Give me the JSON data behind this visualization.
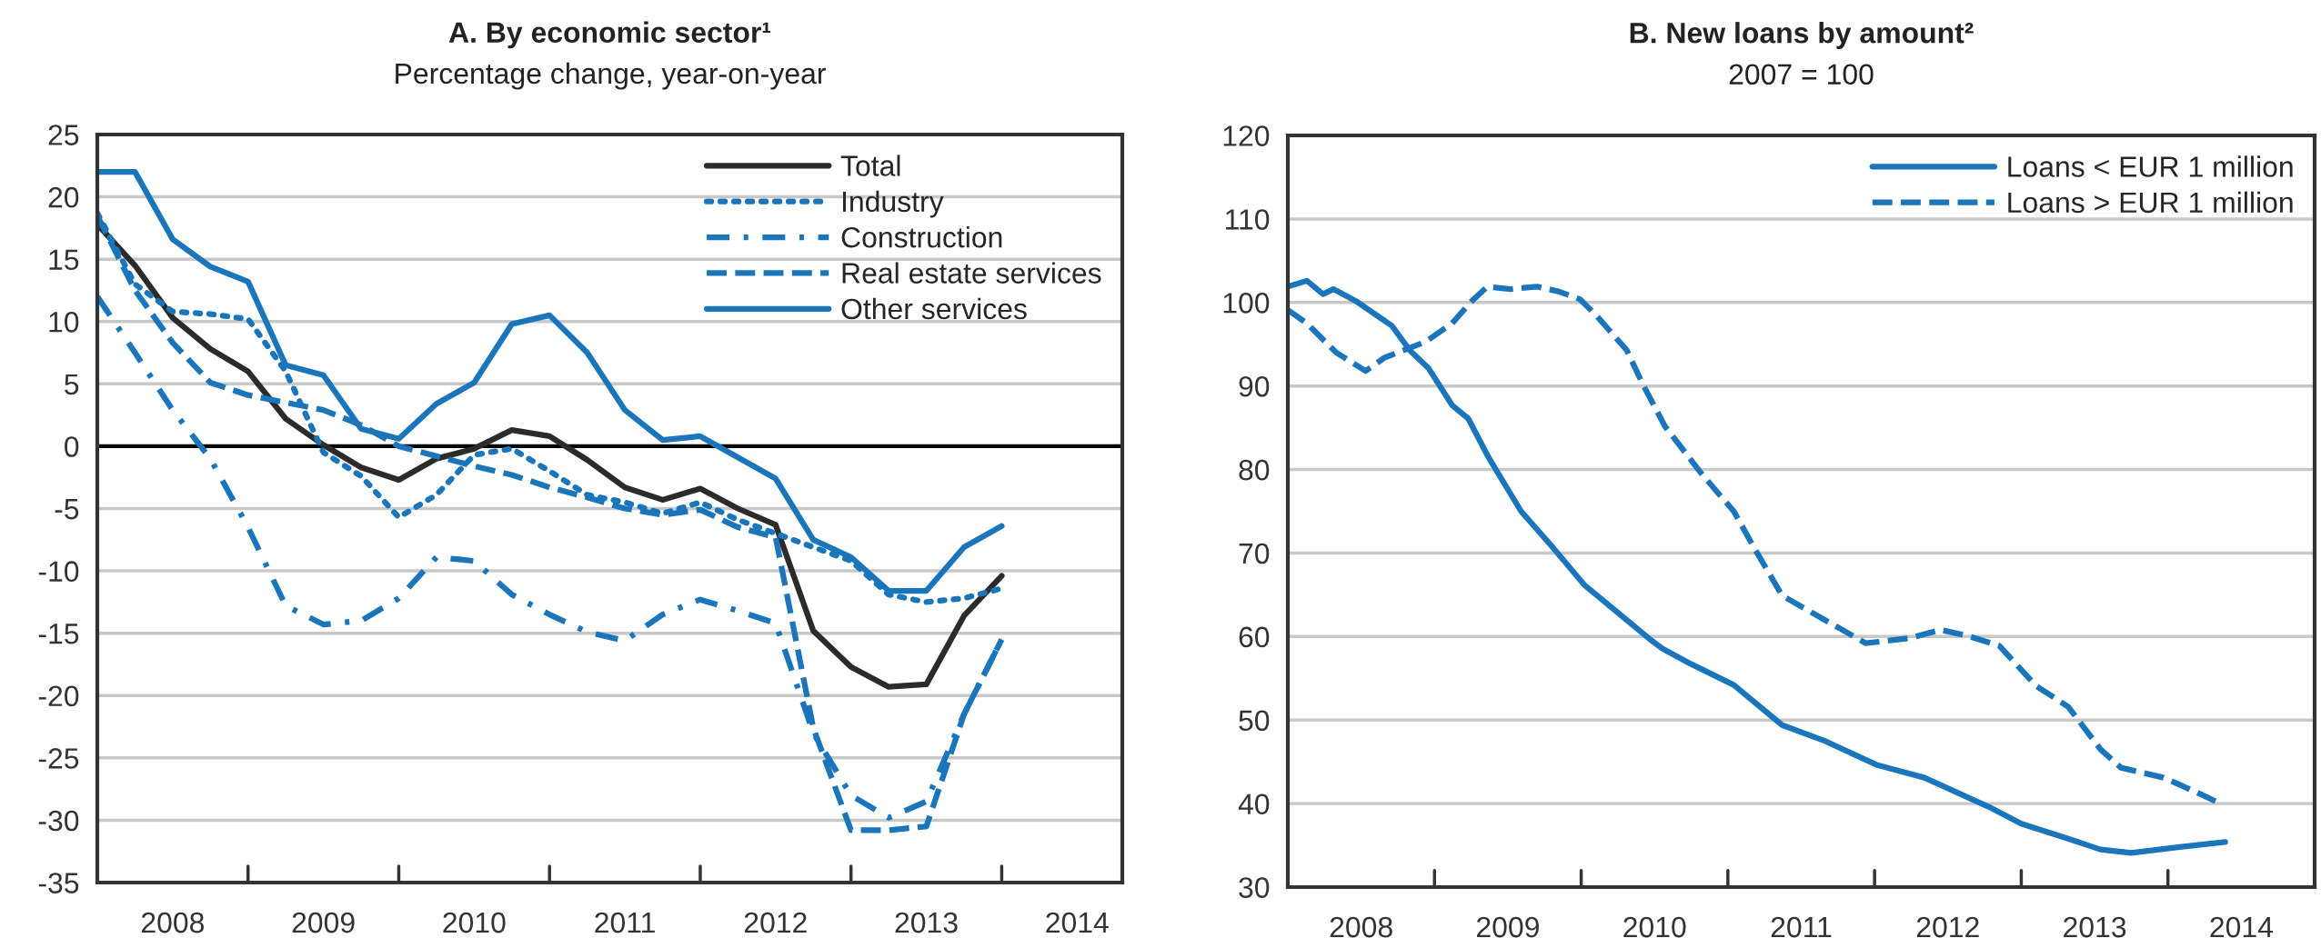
{
  "chart_data": [
    {
      "type": "line",
      "title": "A. By economic sector¹",
      "subtitle": "Percentage change, year-on-year",
      "x": [
        2008.0,
        2008.25,
        2008.5,
        2008.75,
        2009.0,
        2009.25,
        2009.5,
        2009.75,
        2010.0,
        2010.25,
        2010.5,
        2010.75,
        2011.0,
        2011.25,
        2011.5,
        2011.75,
        2012.0,
        2012.25,
        2012.5,
        2012.75,
        2013.0,
        2013.25,
        2013.5,
        2013.75,
        2014.0
      ],
      "series": [
        {
          "name": "Total",
          "color": "#2b2b2b",
          "line_style": "solid",
          "values": [
            17.8,
            14.5,
            10.3,
            7.8,
            6.0,
            2.2,
            0.1,
            -1.7,
            -2.7,
            -1.0,
            -0.2,
            1.3,
            0.8,
            -1.1,
            -3.3,
            -4.3,
            -3.4,
            -5.0,
            -6.3,
            -14.8,
            -17.7,
            -19.3,
            -19.1,
            -13.6,
            -10.4
          ]
        },
        {
          "name": "Industry",
          "color": "#1a75bb",
          "line_style": "dotted",
          "values": [
            18.7,
            13.0,
            10.8,
            10.6,
            10.2,
            6.0,
            -0.5,
            -2.4,
            -5.7,
            -3.9,
            -0.7,
            -0.2,
            -2.0,
            -3.9,
            -4.5,
            -5.4,
            -4.5,
            -5.9,
            -7.0,
            -8.1,
            -9.2,
            -11.9,
            -12.5,
            -12.2,
            -11.4
          ]
        },
        {
          "name": "Construction",
          "color": "#1a75bb",
          "line_style": "dashdot",
          "values": [
            12.0,
            7.5,
            2.9,
            -1.0,
            -6.5,
            -12.8,
            -14.3,
            -14.0,
            -12.2,
            -8.9,
            -9.2,
            -11.9,
            -13.5,
            -14.9,
            -15.6,
            -13.5,
            -12.3,
            -13.2,
            -14.2,
            -23.0,
            -28.0,
            -29.8,
            -28.5,
            -21.5,
            -15.5
          ]
        },
        {
          "name": "Real estate services",
          "color": "#1a75bb",
          "line_style": "dashed",
          "values": [
            18.5,
            12.5,
            8.3,
            5.1,
            4.1,
            3.5,
            2.9,
            1.7,
            0.0,
            -0.8,
            -1.6,
            -2.3,
            -3.3,
            -4.1,
            -5.0,
            -5.5,
            -5.1,
            -6.5,
            -7.3,
            -22.6,
            -30.8,
            -30.8,
            -30.5,
            -21.5,
            -15.5
          ]
        },
        {
          "name": "Other services",
          "color": "#1a75bb",
          "line_style": "solid",
          "values": [
            22.0,
            22.0,
            16.6,
            14.4,
            13.2,
            6.5,
            5.7,
            1.4,
            0.6,
            3.4,
            5.1,
            9.8,
            10.5,
            7.5,
            2.9,
            0.5,
            0.8,
            -0.9,
            -2.6,
            -7.5,
            -8.9,
            -11.6,
            -11.6,
            -8.1,
            -6.4
          ]
        }
      ],
      "xlim": [
        2008.0,
        2014.8
      ],
      "xticks": [
        {
          "value": 2008.5,
          "label": "2008"
        },
        {
          "value": 2009.5,
          "label": "2009"
        },
        {
          "value": 2010.5,
          "label": "2010"
        },
        {
          "value": 2011.5,
          "label": "2011"
        },
        {
          "value": 2012.5,
          "label": "2012"
        },
        {
          "value": 2013.5,
          "label": "2013"
        },
        {
          "value": 2014.5,
          "label": "2014"
        }
      ],
      "ylim": [
        -35,
        25
      ],
      "yticks": [
        -35,
        -30,
        -25,
        -20,
        -15,
        -10,
        -5,
        0,
        5,
        10,
        15,
        20,
        25
      ],
      "ref_lines": [
        {
          "axis": "y",
          "value": 0,
          "color": "#000000",
          "line_style": "solid"
        }
      ],
      "grid": "y",
      "legend": "top right"
    },
    {
      "type": "line",
      "title": "B. New loans by amount²",
      "subtitle": "2007 = 100",
      "series": [
        {
          "name": "Loans < EUR 1 million",
          "color": "#1a75bb",
          "line_style": "solid",
          "x": [
            2008.0,
            2008.13,
            2008.24,
            2008.31,
            2008.47,
            2008.71,
            2008.83,
            2008.96,
            2009.12,
            2009.23,
            2009.37,
            2009.59,
            2009.81,
            2010.02,
            2010.24,
            2010.46,
            2010.55,
            2010.75,
            2011.04,
            2011.37,
            2011.66,
            2012.02,
            2012.34,
            2012.78,
            2013.0,
            2013.32,
            2013.54,
            2013.75,
            2014.08,
            2014.39
          ],
          "values": [
            101.9,
            102.6,
            101.0,
            101.6,
            100.1,
            97.2,
            94.3,
            92.1,
            87.7,
            86.1,
            81.4,
            75.0,
            70.6,
            66.2,
            63.0,
            59.8,
            58.6,
            56.7,
            54.2,
            49.4,
            47.5,
            44.6,
            43.1,
            39.6,
            37.6,
            35.8,
            34.5,
            34.1,
            34.8,
            35.4
          ]
        },
        {
          "name": "Loans > EUR 1 million",
          "color": "#1a75bb",
          "line_style": "dashed",
          "x": [
            2008.0,
            2008.13,
            2008.33,
            2008.53,
            2008.66,
            2008.94,
            2009.12,
            2009.25,
            2009.36,
            2009.52,
            2009.7,
            2009.85,
            2009.99,
            2010.1,
            2010.31,
            2010.42,
            2010.57,
            2010.82,
            2011.04,
            2011.18,
            2011.37,
            2011.66,
            2011.94,
            2012.24,
            2012.45,
            2012.63,
            2012.85,
            2013.1,
            2013.32,
            2013.54,
            2013.68,
            2013.97,
            2014.19,
            2014.37
          ],
          "values": [
            99.1,
            97.5,
            94.0,
            91.8,
            93.4,
            95.3,
            97.5,
            100.1,
            101.9,
            101.6,
            101.9,
            101.3,
            100.4,
            98.5,
            94.3,
            90.2,
            85.2,
            79.5,
            75.0,
            70.6,
            64.9,
            62.0,
            59.2,
            59.8,
            60.8,
            60.1,
            58.9,
            54.1,
            51.6,
            46.5,
            44.3,
            43.1,
            41.4,
            39.9
          ]
        }
      ],
      "xlim": [
        2008.0,
        2015.0
      ],
      "xticks": [
        {
          "value": 2008.5,
          "label": "2008"
        },
        {
          "value": 2009.5,
          "label": "2009"
        },
        {
          "value": 2010.5,
          "label": "2010"
        },
        {
          "value": 2011.5,
          "label": "2011"
        },
        {
          "value": 2012.5,
          "label": "2012"
        },
        {
          "value": 2013.5,
          "label": "2013"
        },
        {
          "value": 2014.5,
          "label": "2014"
        }
      ],
      "ylim": [
        30,
        120
      ],
      "yticks": [
        30,
        40,
        50,
        60,
        70,
        80,
        90,
        100,
        110,
        120
      ],
      "grid": "y",
      "legend": "top right"
    }
  ]
}
